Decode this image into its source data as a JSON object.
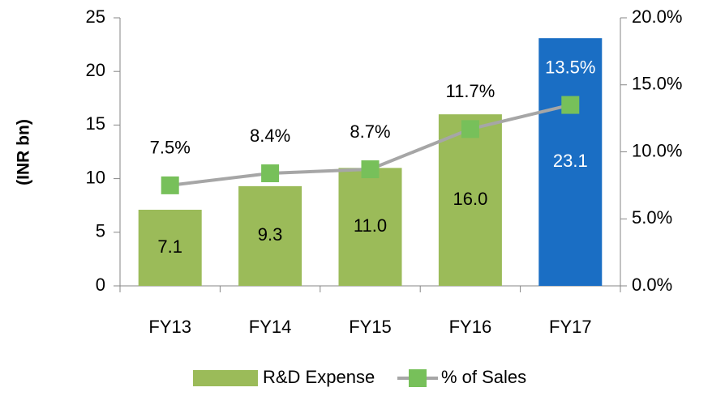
{
  "chart_data": {
    "type": "bar_line",
    "y_label": "(INR bn)",
    "categories": [
      "FY13",
      "FY14",
      "FY15",
      "FY16",
      "FY17"
    ],
    "series": [
      {
        "name": "R&D Expense",
        "type": "bar",
        "color": "#9bbb59",
        "colors": [
          "#9bbb59",
          "#9bbb59",
          "#9bbb59",
          "#9bbb59",
          "#1a6ec4"
        ],
        "values": [
          7.1,
          9.3,
          11.0,
          16.0,
          23.1
        ],
        "value_labels": [
          "7.1",
          "9.3",
          "11.0",
          "16.0",
          "23.1"
        ],
        "label_colors": [
          "#000000",
          "#000000",
          "#000000",
          "#000000",
          "#ffffff"
        ]
      },
      {
        "name": "% of Sales",
        "type": "line",
        "axis": "y2",
        "color": "#a6a6a6",
        "marker_color": "#77c05a",
        "values": [
          7.5,
          8.4,
          8.7,
          11.7,
          13.5
        ],
        "value_labels": [
          "7.5%",
          "8.4%",
          "8.7%",
          "11.7%",
          "13.5%"
        ],
        "label_colors": [
          "#000000",
          "#000000",
          "#000000",
          "#000000",
          "#ffffff"
        ]
      }
    ],
    "ylim": [
      0,
      25
    ],
    "yticks": [
      0,
      5,
      10,
      15,
      20,
      25
    ],
    "y2lim": [
      0,
      20
    ],
    "y2ticks": [
      {
        "value": 0,
        "label": "0.0%"
      },
      {
        "value": 5,
        "label": "5.0%"
      },
      {
        "value": 10,
        "label": "10.0%"
      },
      {
        "value": 15,
        "label": "15.0%"
      },
      {
        "value": 20,
        "label": "20.0%"
      }
    ],
    "legend": "bottom"
  }
}
